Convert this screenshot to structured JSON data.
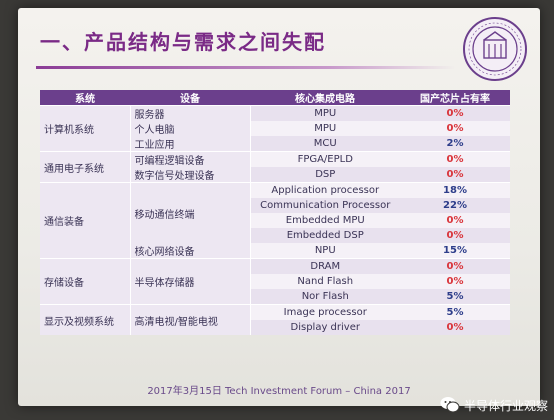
{
  "slide": {
    "title": "一、产品结构与需求之间失配",
    "footer": "2017年3月15日 Tech Investment Forum – China 2017"
  },
  "watermark": {
    "label": "半导体行业观察"
  },
  "colors": {
    "title": "#7a2a86",
    "header_bg": "#6b3f8c",
    "share_red": "#d9343a",
    "share_blue": "#2d3d8a"
  },
  "table": {
    "headers": [
      "系统",
      "设备",
      "核心集成电路",
      "国产芯片占有率"
    ],
    "rows": [
      {
        "system": "计算机系统",
        "device": "服务器",
        "chip": "MPU",
        "share": "0%"
      },
      {
        "system": "",
        "device": "个人电脑",
        "chip": "MPU",
        "share": "0%"
      },
      {
        "system": "",
        "device": "工业应用",
        "chip": "MCU",
        "share": "2%"
      },
      {
        "system": "通用电子系统",
        "device": "可编程逻辑设备",
        "chip": "FPGA/EPLD",
        "share": "0%"
      },
      {
        "system": "",
        "device": "数字信号处理设备",
        "chip": "DSP",
        "share": "0%"
      },
      {
        "system": "通信装备",
        "device": "移动通信终端",
        "chip": "Application processor",
        "share": "18%"
      },
      {
        "system": "",
        "device": "",
        "chip": "Communication Processor",
        "share": "22%"
      },
      {
        "system": "",
        "device": "",
        "chip": "Embedded MPU",
        "share": "0%"
      },
      {
        "system": "",
        "device": "",
        "chip": "Embedded DSP",
        "share": "0%"
      },
      {
        "system": "",
        "device": "核心网络设备",
        "chip": "NPU",
        "share": "15%"
      },
      {
        "system": "存储设备",
        "device": "半导体存储器",
        "chip": "DRAM",
        "share": "0%"
      },
      {
        "system": "",
        "device": "",
        "chip": "Nand Flash",
        "share": "0%"
      },
      {
        "system": "",
        "device": "",
        "chip": "Nor Flash",
        "share": "5%"
      },
      {
        "system": "显示及视频系统",
        "device": "高清电视/智能电视",
        "chip": "Image processor",
        "share": "5%"
      },
      {
        "system": "",
        "device": "",
        "chip": "Display driver",
        "share": "0%"
      }
    ]
  }
}
